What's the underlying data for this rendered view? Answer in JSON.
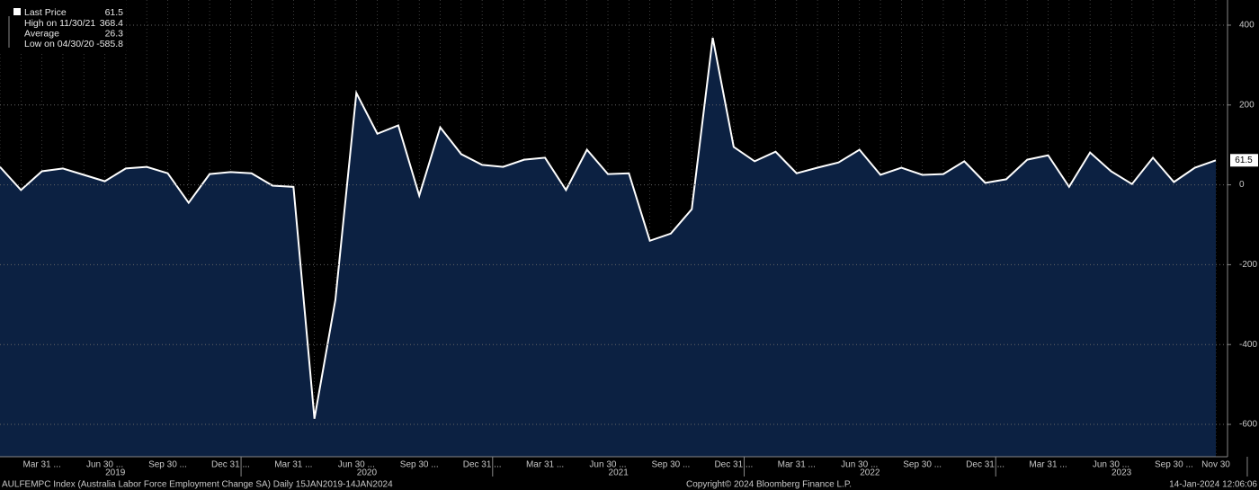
{
  "chart_data": {
    "type": "area",
    "categories": [
      null,
      null,
      "Mar 31 ...",
      null,
      null,
      "Jun 30 ...",
      null,
      null,
      "Sep 30 ...",
      null,
      null,
      "Dec 31 ...",
      null,
      null,
      "Mar 31 ...",
      null,
      null,
      "Jun 30 ...",
      null,
      null,
      "Sep 30 ...",
      null,
      null,
      "Dec 31 ...",
      null,
      null,
      "Mar 31 ...",
      null,
      null,
      "Jun 30 ...",
      null,
      null,
      "Sep 30 ...",
      null,
      null,
      "Dec 31 ...",
      null,
      null,
      "Mar 31 ...",
      null,
      null,
      "Jun 30 ...",
      null,
      null,
      "Sep 30 ...",
      null,
      null,
      "Dec 31 ...",
      null,
      null,
      "Mar 31 ...",
      null,
      null,
      "Jun 30 ...",
      null,
      null,
      "Sep 30 ...",
      null,
      "Nov 30"
    ],
    "years": [
      "2019",
      "2020",
      "2021",
      "2022",
      "2023"
    ],
    "series": [
      {
        "name": "Last Price",
        "color": "#ffffff",
        "fill": "#0c2142",
        "values": [
          45,
          -13,
          34,
          41,
          25,
          9,
          41,
          45,
          29,
          -45,
          27,
          32,
          29,
          -2,
          -5,
          -585.8,
          -288,
          230,
          128,
          149,
          -27,
          144,
          77,
          50,
          45,
          63,
          68,
          -13,
          88,
          27,
          29,
          -140,
          -122,
          -61,
          368.4,
          95,
          59,
          83,
          29,
          43,
          56,
          88,
          25,
          43,
          25,
          27,
          59,
          5,
          14,
          63,
          74,
          -5,
          81,
          34,
          2,
          68,
          7,
          43,
          61.5
        ]
      }
    ],
    "stats": [
      {
        "label": "High on 11/30/21",
        "value": 368.4
      },
      {
        "label": "Average",
        "value": 26.3
      },
      {
        "label": "Low on 04/30/20",
        "value": -585.8
      }
    ],
    "ylim": [
      -681,
      463
    ],
    "yticks": [
      400,
      200,
      0,
      -200,
      -400,
      -600
    ],
    "grid": true,
    "footer": {
      "left": "AULFEMPC Index (Australia Labor Force Employment Change SA)  Daily 15JAN2019-14JAN2024",
      "center": "Copyright© 2024 Bloomberg Finance L.P.",
      "right": "14-Jan-2024 12:06:06"
    }
  }
}
